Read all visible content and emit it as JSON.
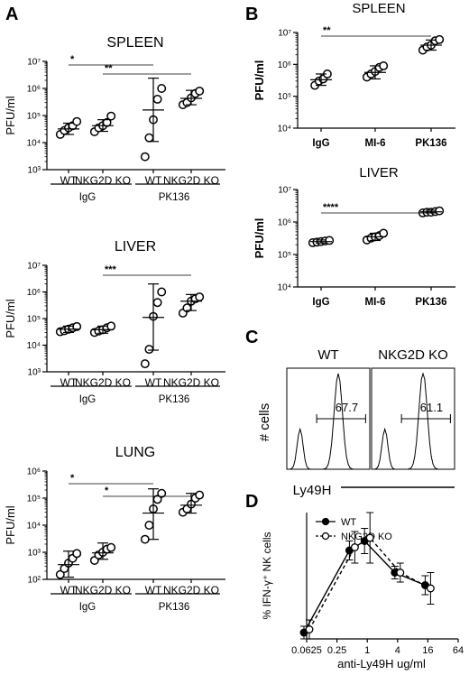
{
  "panel_labels": {
    "A": "A",
    "B": "B",
    "C": "C",
    "D": "D"
  },
  "chart_data": [
    {
      "id": "A-spleen",
      "type": "scatter",
      "title": "SPLEEN",
      "ylabel": "PFU/ml",
      "yscale": "log",
      "ylim": [
        1000,
        10000000
      ],
      "yticks": [
        "10³",
        "10⁴",
        "10⁵",
        "10⁶",
        "10⁷"
      ],
      "categories": [
        "WT",
        "NKG2D KO",
        "WT",
        "NKG2D KO"
      ],
      "groups": [
        "IgG",
        "PK136"
      ],
      "series": [
        {
          "points": [
            20000,
            28000,
            35000,
            42000,
            60000
          ],
          "mean": 32000,
          "sd_low": 20000,
          "sd_high": 52000
        },
        {
          "points": [
            25000,
            35000,
            42000,
            55000,
            95000
          ],
          "mean": 42000,
          "sd_low": 26000,
          "sd_high": 70000
        },
        {
          "points": [
            3000,
            15000,
            70000,
            400000,
            1000000
          ],
          "mean": 160000,
          "sd_low": 11000,
          "sd_high": 2400000
        },
        {
          "points": [
            250000,
            300000,
            450000,
            650000,
            800000
          ],
          "mean": 430000,
          "sd_low": 250000,
          "sd_high": 850000
        }
      ],
      "significance": [
        {
          "label": "*",
          "from": 0,
          "to": 2
        },
        {
          "label": "**",
          "from": 1,
          "to": 3
        }
      ]
    },
    {
      "id": "A-liver",
      "type": "scatter",
      "title": "LIVER",
      "ylabel": "PFU/ml",
      "yscale": "log",
      "ylim": [
        1000,
        10000000
      ],
      "yticks": [
        "10³",
        "10⁴",
        "10⁵",
        "10⁶",
        "10⁷"
      ],
      "categories": [
        "WT",
        "NKG2D KO",
        "WT",
        "NKG2D KO"
      ],
      "groups": [
        "IgG",
        "PK136"
      ],
      "series": [
        {
          "points": [
            32000,
            35000,
            40000,
            45000,
            50000
          ],
          "mean": 40000,
          "sd_low": 30000,
          "sd_high": 52000
        },
        {
          "points": [
            30000,
            34000,
            38000,
            45000,
            52000
          ],
          "mean": 38000,
          "sd_low": 28000,
          "sd_high": 52000
        },
        {
          "points": [
            2000,
            7000,
            120000,
            400000,
            1000000
          ],
          "mean": 110000,
          "sd_low": 6500,
          "sd_high": 2000000
        },
        {
          "points": [
            160000,
            250000,
            450000,
            550000,
            650000
          ],
          "mean": 450000,
          "sd_low": 200000,
          "sd_high": 800000
        }
      ],
      "significance": [
        {
          "label": "***",
          "from": 1,
          "to": 3
        }
      ]
    },
    {
      "id": "A-lung",
      "type": "scatter",
      "title": "LUNG",
      "ylabel": "PFU/ml",
      "yscale": "log",
      "ylim": [
        100,
        1000000
      ],
      "yticks": [
        "10²",
        "10³",
        "10⁴",
        "10⁵",
        "10⁶"
      ],
      "categories": [
        "WT",
        "NKG2D KO",
        "WT",
        "NKG2D KO"
      ],
      "groups": [
        "IgG",
        "PK136"
      ],
      "series": [
        {
          "points": [
            150,
            250,
            400,
            600,
            900
          ],
          "mean": 350,
          "sd_low": 120,
          "sd_high": 1100
        },
        {
          "points": [
            500,
            800,
            1000,
            1300,
            1500
          ],
          "mean": 950,
          "sd_low": 550,
          "sd_high": 2200
        },
        {
          "points": [
            3000,
            10000,
            40000,
            90000,
            150000
          ],
          "mean": 28000,
          "sd_low": 3000,
          "sd_high": 220000
        },
        {
          "points": [
            30000,
            40000,
            60000,
            100000,
            130000
          ],
          "mean": 55000,
          "sd_low": 28000,
          "sd_high": 150000
        }
      ],
      "significance": [
        {
          "label": "*",
          "from": 0,
          "to": 2
        },
        {
          "label": "*",
          "from": 1,
          "to": 3
        }
      ]
    },
    {
      "id": "B-spleen",
      "type": "scatter",
      "title": "SPLEEN",
      "ylabel": "PFU/ml",
      "yscale": "log",
      "ylim": [
        10000,
        10000000
      ],
      "yticks": [
        "10⁴",
        "10⁵",
        "10⁶",
        "10⁷"
      ],
      "categories": [
        "IgG",
        "MI-6",
        "PK136"
      ],
      "series": [
        {
          "points": [
            220000,
            300000,
            350000,
            500000
          ],
          "mean": 330000,
          "sd_low": 220000,
          "sd_high": 500000
        },
        {
          "points": [
            400000,
            500000,
            600000,
            800000,
            900000
          ],
          "mean": 560000,
          "sd_low": 350000,
          "sd_high": 900000
        },
        {
          "points": [
            2800000,
            3500000,
            4000000,
            5500000,
            6000000
          ],
          "mean": 4000000,
          "sd_low": 2800000,
          "sd_high": 5800000
        }
      ],
      "significance": [
        {
          "label": "**",
          "from": 0,
          "to": 2
        }
      ]
    },
    {
      "id": "B-liver",
      "type": "scatter",
      "title": "LIVER",
      "ylabel": "PFU/ml",
      "yscale": "log",
      "ylim": [
        10000,
        10000000
      ],
      "yticks": [
        "10⁴",
        "10⁵",
        "10⁶",
        "10⁷"
      ],
      "categories": [
        "IgG",
        "MI-6",
        "PK136"
      ],
      "series": [
        {
          "points": [
            230000,
            240000,
            250000,
            260000,
            270000
          ],
          "mean": 250000,
          "sd_low": 225000,
          "sd_high": 280000
        },
        {
          "points": [
            280000,
            320000,
            350000,
            380000,
            450000
          ],
          "mean": 350000,
          "sd_low": 270000,
          "sd_high": 450000
        },
        {
          "points": [
            1900000,
            2000000,
            2000000,
            2100000,
            2200000
          ],
          "mean": 2050000,
          "sd_low": 1900000,
          "sd_high": 2300000
        }
      ],
      "significance": [
        {
          "label": "****",
          "from": 0,
          "to": 2
        }
      ]
    },
    {
      "id": "C",
      "type": "histogram",
      "samples": [
        {
          "name": "WT",
          "gate_pct": "67.7"
        },
        {
          "name": "NKG2D KO",
          "gate_pct": "61.1"
        }
      ],
      "ylabel": "# cells",
      "xlabel": "Ly49H"
    },
    {
      "id": "D",
      "type": "line",
      "xscale": "log2",
      "xlabel": "anti-Ly49H ug/ml",
      "ylabel": "% IFN-γ⁺ NK cells",
      "xticks": [
        "0.0625",
        "0.25",
        "1",
        "4",
        "16",
        "64"
      ],
      "x": [
        0.0625,
        0.5,
        1,
        4,
        16
      ],
      "ylim": [
        0,
        40
      ],
      "series": [
        {
          "name": "WT",
          "values": [
            2,
            28,
            31,
            21,
            17
          ],
          "err": [
            2,
            3,
            4,
            2,
            3
          ],
          "marker": "filled",
          "dash": false
        },
        {
          "name": "NKG2D KO",
          "values": [
            3,
            29,
            32,
            21,
            16
          ],
          "err": [
            3,
            5,
            8,
            3,
            5
          ],
          "marker": "open",
          "dash": true
        }
      ]
    }
  ]
}
